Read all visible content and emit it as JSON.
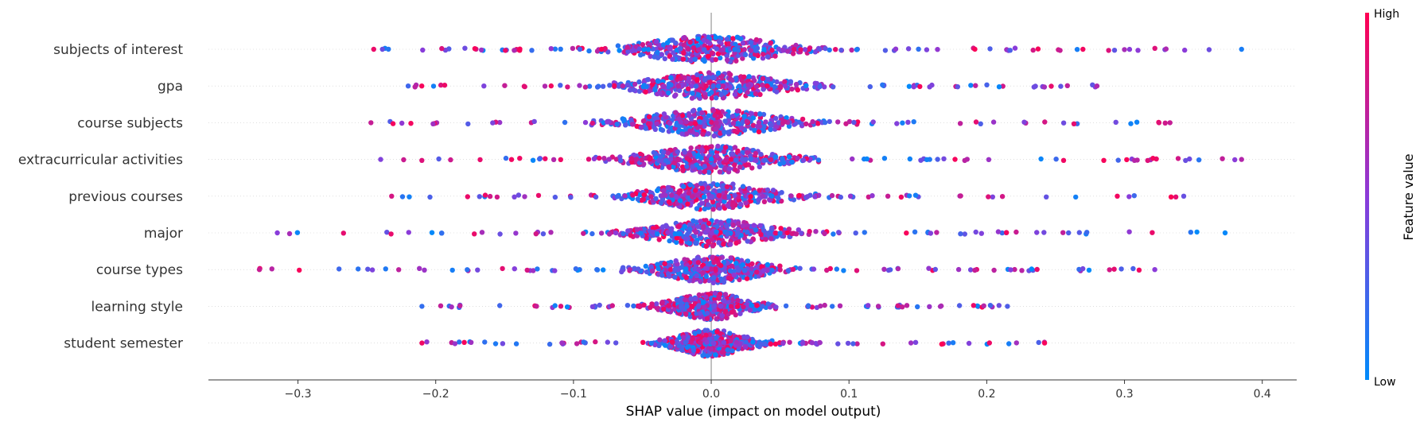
{
  "chart_data": {
    "type": "scatter",
    "subtype": "shap-beeswarm",
    "xlabel": "SHAP value (impact on model output)",
    "xlim": [
      -0.365,
      0.425
    ],
    "xticks": [
      -0.3,
      -0.2,
      -0.1,
      0.0,
      0.1,
      0.2,
      0.3,
      0.4
    ],
    "xtick_labels": [
      "−0.3",
      "−0.2",
      "−0.1",
      "0.0",
      "0.1",
      "0.2",
      "0.3",
      "0.4"
    ],
    "zero_line": 0.0,
    "colorbar": {
      "title": "Feature value",
      "high_label": "High",
      "low_label": "Low",
      "high_color": "#ff0052",
      "mid_color": "#8b3bd9",
      "low_color": "#008bfb"
    },
    "features": [
      {
        "name": "subjects of interest",
        "min": -0.245,
        "max": 0.385,
        "spread": 0.085
      },
      {
        "name": "gpa",
        "min": -0.22,
        "max": 0.28,
        "spread": 0.078
      },
      {
        "name": "course subjects",
        "min": -0.247,
        "max": 0.333,
        "spread": 0.08
      },
      {
        "name": "extracurricular activities",
        "min": -0.24,
        "max": 0.385,
        "spread": 0.075
      },
      {
        "name": "previous courses",
        "min": -0.232,
        "max": 0.343,
        "spread": 0.072
      },
      {
        "name": "major",
        "min": -0.315,
        "max": 0.373,
        "spread": 0.07
      },
      {
        "name": "course types",
        "min": -0.328,
        "max": 0.322,
        "spread": 0.06
      },
      {
        "name": "learning style",
        "min": -0.21,
        "max": 0.215,
        "spread": 0.045
      },
      {
        "name": "student semester",
        "min": -0.21,
        "max": 0.242,
        "spread": 0.042
      }
    ]
  }
}
